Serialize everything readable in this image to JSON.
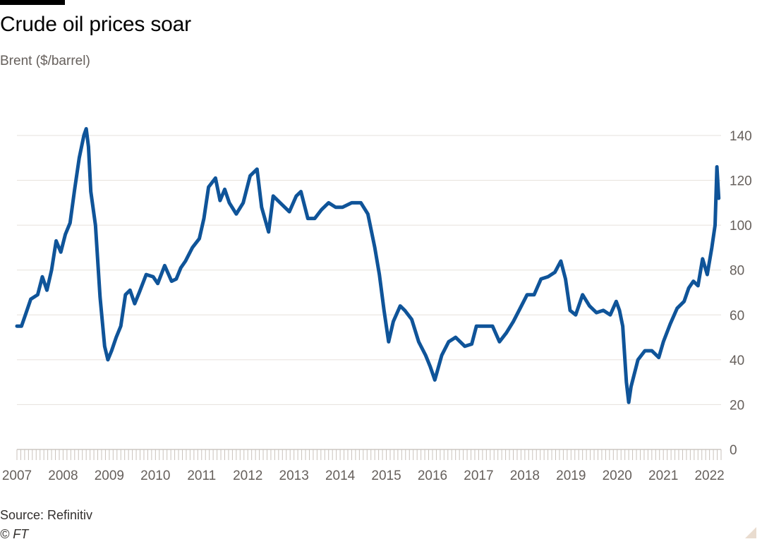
{
  "header": {
    "title": "Crude oil prices soar",
    "subtitle": "Brent ($/barrel)"
  },
  "footer": {
    "source": "Source: Refinitiv",
    "credit": "© FT"
  },
  "colors": {
    "line": "#0f5499",
    "grid": "#e6e1dc",
    "text": "#66605c"
  },
  "chart_data": {
    "type": "line",
    "title": "Crude oil prices soar",
    "ylabel": "Brent ($/barrel)",
    "xlabel": "",
    "xlim": [
      2007.0,
      2022.25
    ],
    "ylim": [
      0,
      140
    ],
    "yticks": [
      0,
      20,
      40,
      60,
      80,
      100,
      120,
      140
    ],
    "xticks": [
      2007,
      2008,
      2009,
      2010,
      2011,
      2012,
      2013,
      2014,
      2015,
      2016,
      2017,
      2018,
      2019,
      2020,
      2021,
      2022
    ],
    "grid": true,
    "y_axis_side": "right",
    "series": [
      {
        "x": [
          2007.0,
          2007.1,
          2007.2,
          2007.3,
          2007.45,
          2007.55,
          2007.65,
          2007.75,
          2007.85,
          2007.95,
          2008.05,
          2008.15,
          2008.25,
          2008.35,
          2008.45,
          2008.5,
          2008.55,
          2008.6,
          2008.7,
          2008.8,
          2008.9,
          2008.97,
          2009.05,
          2009.15,
          2009.25,
          2009.35,
          2009.45,
          2009.55,
          2009.65,
          2009.8,
          2009.95,
          2010.05,
          2010.2,
          2010.35,
          2010.45,
          2010.55,
          2010.65,
          2010.8,
          2010.95,
          2011.05,
          2011.15,
          2011.3,
          2011.4,
          2011.5,
          2011.6,
          2011.75,
          2011.9,
          2012.05,
          2012.2,
          2012.3,
          2012.45,
          2012.55,
          2012.7,
          2012.9,
          2013.05,
          2013.15,
          2013.3,
          2013.45,
          2013.6,
          2013.75,
          2013.9,
          2014.05,
          2014.25,
          2014.45,
          2014.6,
          2014.75,
          2014.85,
          2014.95,
          2015.05,
          2015.15,
          2015.3,
          2015.4,
          2015.55,
          2015.7,
          2015.85,
          2015.95,
          2016.05,
          2016.2,
          2016.35,
          2016.5,
          2016.7,
          2016.85,
          2016.95,
          2017.1,
          2017.3,
          2017.45,
          2017.6,
          2017.75,
          2017.9,
          2018.05,
          2018.2,
          2018.35,
          2018.5,
          2018.65,
          2018.78,
          2018.88,
          2018.98,
          2019.1,
          2019.25,
          2019.4,
          2019.55,
          2019.7,
          2019.85,
          2019.98,
          2020.05,
          2020.12,
          2020.2,
          2020.25,
          2020.3,
          2020.45,
          2020.6,
          2020.75,
          2020.9,
          2021.0,
          2021.15,
          2021.3,
          2021.45,
          2021.55,
          2021.65,
          2021.75,
          2021.85,
          2021.95,
          2022.05,
          2022.12,
          2022.16,
          2022.2
        ],
        "values": [
          55,
          55,
          61,
          67,
          69,
          77,
          71,
          80,
          93,
          88,
          96,
          101,
          116,
          130,
          140,
          143,
          135,
          115,
          100,
          68,
          46,
          40,
          44,
          50,
          55,
          69,
          71,
          65,
          70,
          78,
          77,
          74,
          82,
          75,
          76,
          81,
          84,
          90,
          94,
          103,
          117,
          121,
          111,
          116,
          110,
          105,
          110,
          122,
          125,
          108,
          97,
          113,
          110,
          106,
          113,
          115,
          103,
          103,
          107,
          110,
          108,
          108,
          110,
          110,
          105,
          90,
          78,
          62,
          48,
          57,
          64,
          62,
          58,
          48,
          42,
          37,
          31,
          42,
          48,
          50,
          46,
          47,
          55,
          55,
          55,
          48,
          52,
          57,
          63,
          69,
          69,
          76,
          77,
          79,
          84,
          76,
          62,
          60,
          69,
          64,
          61,
          62,
          60,
          66,
          62,
          55,
          30,
          21,
          28,
          40,
          44,
          44,
          41,
          48,
          56,
          63,
          66,
          72,
          75,
          73,
          85,
          78,
          90,
          100,
          126,
          112
        ]
      }
    ]
  }
}
